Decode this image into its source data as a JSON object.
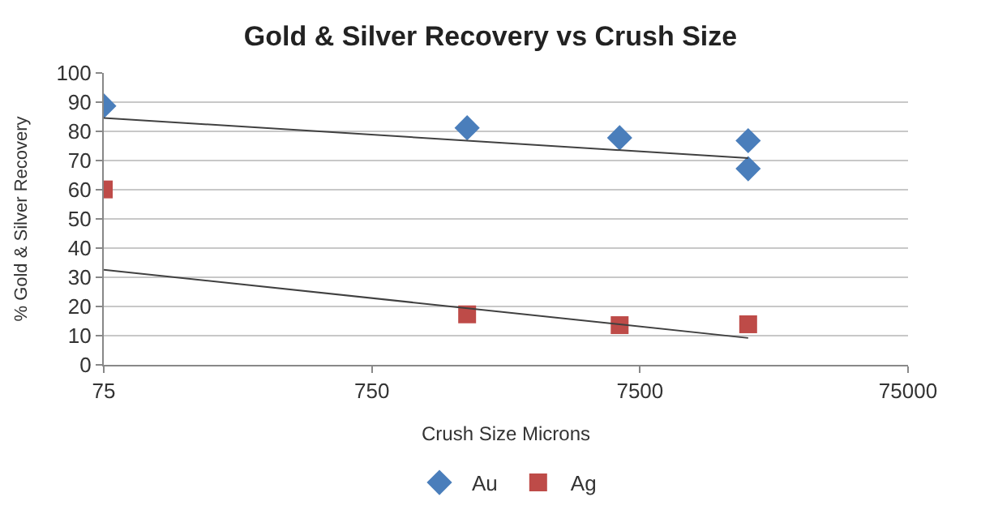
{
  "chart_data": {
    "type": "scatter",
    "title": "Gold & Silver Recovery vs Crush Size",
    "xlabel": "Crush Size Microns",
    "ylabel": "% Gold & Silver Recovery",
    "log": "x",
    "xlim": [
      75,
      75000
    ],
    "xticks": [
      75,
      750,
      7500,
      75000
    ],
    "ylim": [
      0,
      100
    ],
    "yticks": [
      0,
      10,
      20,
      30,
      40,
      50,
      60,
      70,
      80,
      90,
      100
    ],
    "grid": "y",
    "legend": "bottom",
    "series": [
      {
        "name": "Au",
        "color": "#4a7ebb",
        "marker": "diamond",
        "x": [
          75,
          1700,
          6300,
          19000,
          19000
        ],
        "values": [
          88.7,
          81.2,
          77.8,
          76.8,
          67.2
        ]
      },
      {
        "name": "Ag",
        "color": "#be4b48",
        "marker": "square",
        "x": [
          75,
          1700,
          6300,
          19000
        ],
        "values": [
          60.1,
          17.3,
          13.6,
          13.9
        ]
      },
      {
        "type": "line",
        "color": "#404040",
        "marker": "none",
        "x": [
          75,
          19000
        ],
        "values": [
          84.6,
          70.8
        ]
      },
      {
        "type": "line",
        "color": "#404040",
        "marker": "none",
        "x": [
          75,
          19000
        ],
        "values": [
          32.6,
          9.2
        ]
      }
    ]
  }
}
